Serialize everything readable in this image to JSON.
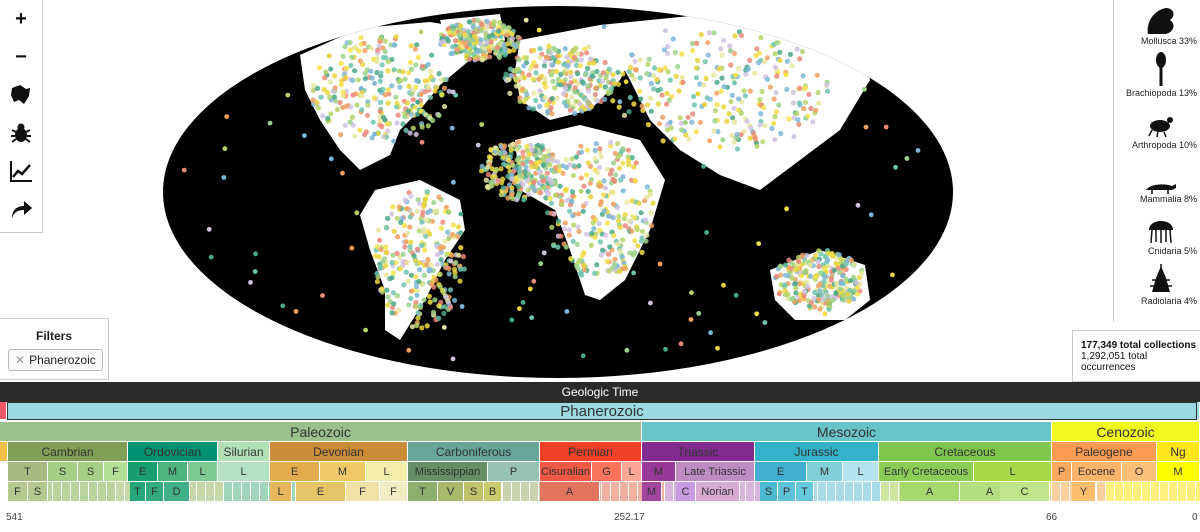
{
  "toolbar": {
    "zoom_in": "+",
    "zoom_out": "−",
    "icons": [
      "map-icon",
      "bug-icon",
      "chart-line-icon",
      "share-icon"
    ]
  },
  "taxa": [
    {
      "label": "Mollusca 33%",
      "icon": "mollusca-icon"
    },
    {
      "label": "Brachiopoda 13%",
      "icon": "brachiopoda-icon"
    },
    {
      "label": "Arthropoda 10%",
      "icon": "arthropoda-icon"
    },
    {
      "label": "Mammalia 8%",
      "icon": "mammalia-icon"
    },
    {
      "label": "Cnidaria 5%",
      "icon": "cnidaria-icon"
    },
    {
      "label": "Radiolaria 4%",
      "icon": "radiolaria-icon"
    }
  ],
  "filters": {
    "title": "Filters",
    "chip": "Phanerozoic",
    "chip_close": "✕"
  },
  "stats": {
    "collections": "177,349 total collections",
    "occurrences": "1,292,051 total occurrences"
  },
  "timescale": {
    "title": "Geologic Time",
    "eon": "Phanerozoic",
    "eras": [
      "Paleozoic",
      "Mesozoic",
      "Cenozoic"
    ],
    "periods": [
      "Cambrian",
      "Ordovician",
      "Silurian",
      "Devonian",
      "Carboniferous",
      "Permian",
      "Triassic",
      "Jurassic",
      "Cretaceous",
      "Paleogene",
      "Ng"
    ],
    "epochs": [
      "T",
      "S",
      "S",
      "F",
      "E",
      "M",
      "L",
      "L",
      "E",
      "M",
      "L",
      "Mississippian",
      "P",
      "Cisuralian",
      "G",
      "L",
      "M",
      "Late Triassic",
      "E",
      "M",
      "L",
      "Early Cretaceous",
      "L",
      "P",
      "Eocene",
      "O",
      "M"
    ],
    "ages": [
      "F",
      "S",
      "T",
      "F",
      "D",
      "L",
      "E",
      "F",
      "F",
      "T",
      "V",
      "S",
      "B",
      "A",
      "M",
      "C",
      "Norian",
      "S",
      "P",
      "T",
      "A",
      "A",
      "C",
      "Y"
    ],
    "ticks": [
      "541",
      "252.17",
      "66",
      "0"
    ]
  },
  "colors": {
    "ocean": "#000000",
    "land": "#ffffff",
    "timebar": "#2a2a2a"
  }
}
